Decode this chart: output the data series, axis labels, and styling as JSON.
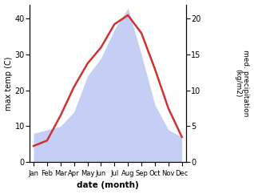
{
  "months": [
    "Jan",
    "Feb",
    "Mar",
    "Apr",
    "May",
    "Jun",
    "Jul",
    "Aug",
    "Sep",
    "Oct",
    "Nov",
    "Dec"
  ],
  "temp": [
    4.5,
    6.0,
    13.0,
    21.0,
    27.5,
    32.0,
    38.5,
    41.0,
    36.0,
    26.0,
    15.0,
    7.0
  ],
  "precip": [
    4.0,
    4.5,
    5.0,
    7.0,
    12.0,
    14.5,
    18.5,
    21.5,
    15.0,
    8.0,
    4.5,
    3.5
  ],
  "temp_color": "#cc3333",
  "precip_fill_color": "#c5cff5",
  "temp_ylim": [
    0,
    44
  ],
  "precip_ylim": [
    0,
    22
  ],
  "temp_yticks": [
    0,
    10,
    20,
    30,
    40
  ],
  "precip_yticks": [
    0,
    5,
    10,
    15,
    20
  ],
  "xlabel": "date (month)",
  "ylabel_left": "max temp (C)",
  "ylabel_right": "med. precipitation\n(kg/m2)",
  "bg_color": "#ffffff",
  "line_width": 1.8
}
